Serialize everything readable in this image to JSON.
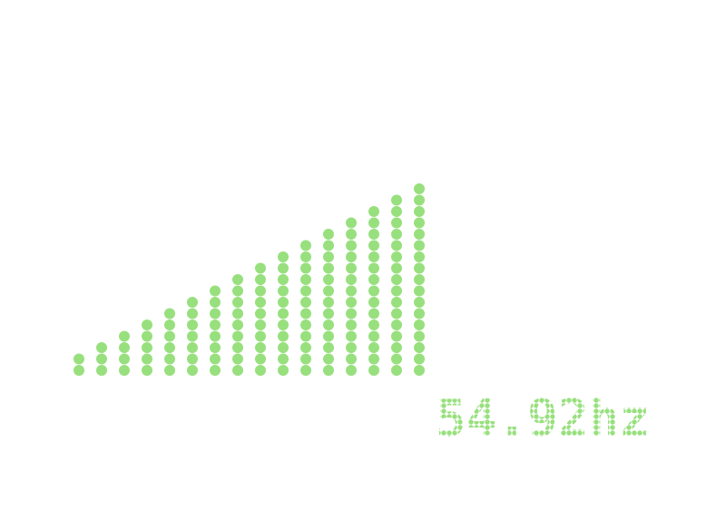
{
  "meter": {
    "levels": [
      2,
      3,
      4,
      5,
      6,
      7,
      8,
      9,
      10,
      11,
      12,
      13,
      14,
      15,
      16,
      17
    ],
    "color": "#98e07e"
  },
  "readout": "54.92hz"
}
